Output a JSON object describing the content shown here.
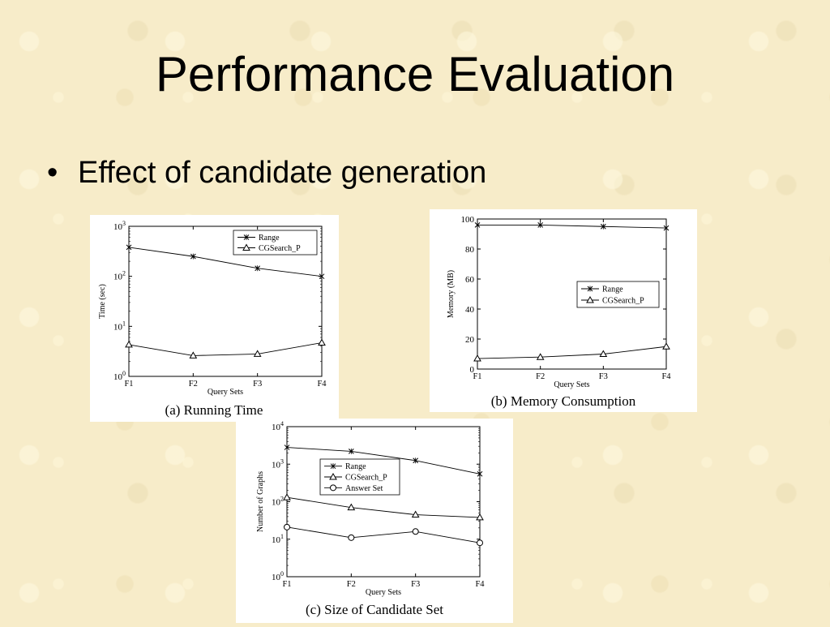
{
  "slide": {
    "title": "Performance Evaluation",
    "bullet_symbol": "•",
    "bullet": "Effect of candidate generation"
  },
  "chart_data": [
    {
      "type": "line",
      "caption": "(a) Running Time",
      "xlabel": "Query Sets",
      "ylabel": "Time (sec)",
      "yscale": "log",
      "ylim": [
        1,
        1000
      ],
      "y_ticks": [
        {
          "base": "10",
          "exp": "0",
          "v": 1
        },
        {
          "base": "10",
          "exp": "1",
          "v": 10
        },
        {
          "base": "10",
          "exp": "2",
          "v": 100
        },
        {
          "base": "10",
          "exp": "3",
          "v": 1000
        }
      ],
      "categories": [
        "F1",
        "F2",
        "F3",
        "F4"
      ],
      "legend_position": "top-right",
      "series": [
        {
          "name": "Range",
          "marker": "x",
          "values": [
            380,
            250,
            145,
            100
          ]
        },
        {
          "name": "CGSearch_P",
          "marker": "triangle",
          "values": [
            4.3,
            2.6,
            2.8,
            4.7
          ]
        }
      ]
    },
    {
      "type": "line",
      "caption": "(b) Memory Consumption",
      "xlabel": "Query Sets",
      "ylabel": "Memory (MB)",
      "yscale": "linear",
      "ylim": [
        0,
        100
      ],
      "y_ticks": [
        0,
        20,
        40,
        60,
        80,
        100
      ],
      "categories": [
        "F1",
        "F2",
        "F3",
        "F4"
      ],
      "legend_position": "center-right",
      "series": [
        {
          "name": "Range",
          "marker": "x",
          "values": [
            96,
            96,
            95,
            94
          ]
        },
        {
          "name": "CGSearch_P",
          "marker": "triangle",
          "values": [
            7,
            8,
            10,
            15
          ]
        }
      ]
    },
    {
      "type": "line",
      "caption": "(c) Size of Candidate Set",
      "xlabel": "Query Sets",
      "ylabel": "Number of Graphs",
      "yscale": "log",
      "ylim": [
        1,
        10000
      ],
      "y_ticks": [
        {
          "base": "10",
          "exp": "0",
          "v": 1
        },
        {
          "base": "10",
          "exp": "1",
          "v": 10
        },
        {
          "base": "10",
          "exp": "2",
          "v": 100
        },
        {
          "base": "10",
          "exp": "3",
          "v": 1000
        },
        {
          "base": "10",
          "exp": "4",
          "v": 10000
        }
      ],
      "categories": [
        "F1",
        "F2",
        "F3",
        "F4"
      ],
      "legend_position": "upper-left",
      "series": [
        {
          "name": "Range",
          "marker": "x",
          "values": [
            2800,
            2200,
            1250,
            550
          ]
        },
        {
          "name": "CGSearch_P",
          "marker": "triangle",
          "values": [
            130,
            70,
            45,
            38
          ]
        },
        {
          "name": "Answer Set",
          "marker": "circle",
          "values": [
            21,
            11,
            16,
            8
          ]
        }
      ]
    }
  ]
}
